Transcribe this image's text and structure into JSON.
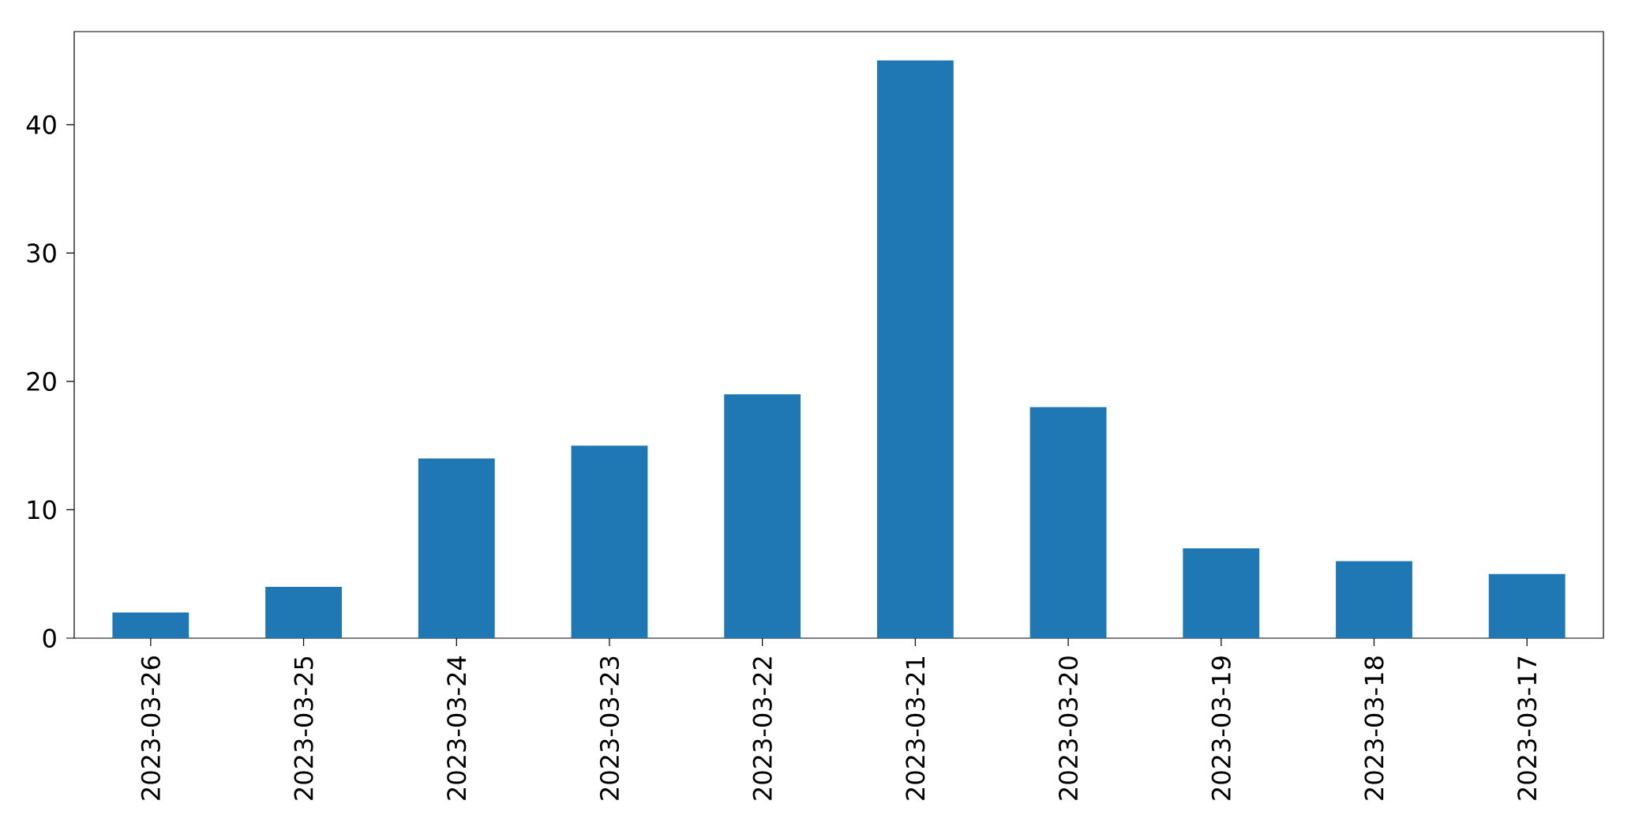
{
  "chart_data": {
    "type": "bar",
    "categories": [
      "2023-03-26",
      "2023-03-25",
      "2023-03-24",
      "2023-03-23",
      "2023-03-22",
      "2023-03-21",
      "2023-03-20",
      "2023-03-19",
      "2023-03-18",
      "2023-03-17"
    ],
    "values": [
      2,
      4,
      14,
      15,
      19,
      45,
      18,
      7,
      6,
      5
    ],
    "color": "#1f77b4",
    "ylim": [
      0,
      47.25
    ],
    "yticks": [
      0,
      10,
      20,
      30,
      40
    ]
  }
}
